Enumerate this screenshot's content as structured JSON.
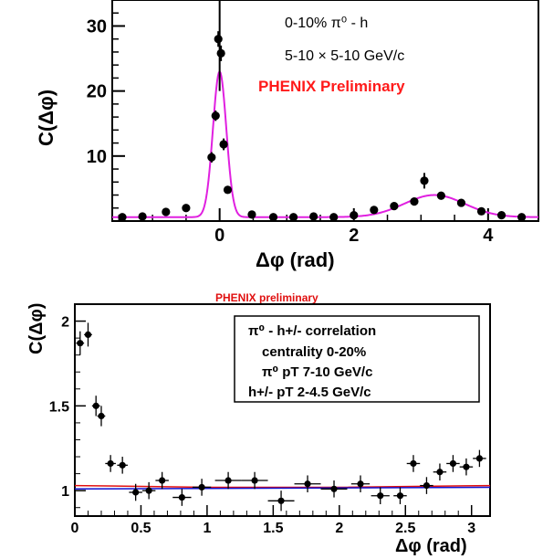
{
  "chart_data": [
    {
      "type": "scatter",
      "xlabel": "Δφ (rad)",
      "ylabel": "C(Δφ)",
      "xlim": [
        -1.6,
        4.75
      ],
      "ylim": [
        0,
        34
      ],
      "xticks": [
        0,
        2,
        4
      ],
      "yticks": [
        10,
        20,
        30
      ],
      "annotations": [
        "0-10%   π⁰ - h",
        "5-10 × 5-10 GeV/c"
      ],
      "preliminary_label": "PHENIX Preliminary",
      "colors": {
        "points": "#000000",
        "fit": "#e020e0",
        "preliminary": "#ff1a1a"
      },
      "series": [
        {
          "points": [
            {
              "x": -1.45,
              "y": 0.6
            },
            {
              "x": -1.15,
              "y": 0.7
            },
            {
              "x": -0.8,
              "y": 1.4
            },
            {
              "x": -0.5,
              "y": 2.0
            },
            {
              "x": -0.12,
              "y": 9.8
            },
            {
              "x": -0.06,
              "y": 16.2
            },
            {
              "x": -0.02,
              "y": 28.0
            },
            {
              "x": 0.02,
              "y": 25.8
            },
            {
              "x": 0.06,
              "y": 11.8
            },
            {
              "x": 0.12,
              "y": 4.8
            },
            {
              "x": 0.48,
              "y": 1.0
            },
            {
              "x": 0.8,
              "y": 0.6
            },
            {
              "x": 1.1,
              "y": 0.6
            },
            {
              "x": 1.4,
              "y": 0.7
            },
            {
              "x": 1.7,
              "y": 0.6
            },
            {
              "x": 2.0,
              "y": 0.9
            },
            {
              "x": 2.3,
              "y": 1.7
            },
            {
              "x": 2.6,
              "y": 2.3
            },
            {
              "x": 2.9,
              "y": 3.0
            },
            {
              "x": 3.05,
              "y": 6.2
            },
            {
              "x": 3.3,
              "y": 3.9
            },
            {
              "x": 3.6,
              "y": 2.8
            },
            {
              "x": 3.9,
              "y": 1.5
            },
            {
              "x": 4.2,
              "y": 0.9
            },
            {
              "x": 4.5,
              "y": 0.6
            }
          ],
          "yerr": [
            0.4,
            0.4,
            0.4,
            0.5,
            0.8,
            0.8,
            1.2,
            1.2,
            0.9,
            0.6,
            0.4,
            0.4,
            0.4,
            0.4,
            0.4,
            0.4,
            0.4,
            0.5,
            0.5,
            1.2,
            0.6,
            0.5,
            0.4,
            0.4,
            0.4
          ]
        }
      ]
    },
    {
      "type": "scatter",
      "title": "PHENIX preliminary",
      "xlabel": "Δφ (rad)",
      "ylabel": "C(Δφ)",
      "xlim": [
        0,
        3.14
      ],
      "ylim": [
        0.85,
        2.1
      ],
      "xticks": [
        0,
        0.5,
        1,
        1.5,
        2,
        2.5,
        3
      ],
      "xtick_labels": [
        "0",
        "0.5",
        "1",
        "1.5",
        "2",
        "2.5",
        "3"
      ],
      "yticks": [
        1,
        1.5,
        2
      ],
      "ytick_labels": [
        "1",
        "1.5",
        "2"
      ],
      "legend_lines": [
        "π⁰ - h+/- correlation",
        "centrality 0-20%",
        "π⁰ pT 7-10 GeV/c",
        "h+/- pT 2-4.5 GeV/c"
      ],
      "legend_placement": "top-right",
      "colors": {
        "points": "#000000",
        "line_red": "#e01010",
        "line_blue": "#1010d0",
        "title": "#e01010"
      },
      "series": [
        {
          "points": [
            {
              "x": 0.04,
              "y": 1.87
            },
            {
              "x": 0.1,
              "y": 1.92
            },
            {
              "x": 0.16,
              "y": 1.5
            },
            {
              "x": 0.2,
              "y": 1.44
            },
            {
              "x": 0.27,
              "y": 1.16
            },
            {
              "x": 0.36,
              "y": 1.15
            },
            {
              "x": 0.46,
              "y": 0.99
            },
            {
              "x": 0.56,
              "y": 1.0
            },
            {
              "x": 0.66,
              "y": 1.06
            },
            {
              "x": 0.81,
              "y": 0.96
            },
            {
              "x": 0.96,
              "y": 1.02
            },
            {
              "x": 1.16,
              "y": 1.06
            },
            {
              "x": 1.36,
              "y": 1.06
            },
            {
              "x": 1.56,
              "y": 0.94
            },
            {
              "x": 1.76,
              "y": 1.04
            },
            {
              "x": 1.96,
              "y": 1.01
            },
            {
              "x": 2.16,
              "y": 1.04
            },
            {
              "x": 2.31,
              "y": 0.97
            },
            {
              "x": 2.46,
              "y": 0.97
            },
            {
              "x": 2.56,
              "y": 1.16
            },
            {
              "x": 2.66,
              "y": 1.03
            },
            {
              "x": 2.76,
              "y": 1.11
            },
            {
              "x": 2.86,
              "y": 1.16
            },
            {
              "x": 2.96,
              "y": 1.14
            },
            {
              "x": 3.06,
              "y": 1.19
            }
          ],
          "yerr": [
            0.07,
            0.07,
            0.06,
            0.06,
            0.05,
            0.05,
            0.05,
            0.05,
            0.05,
            0.05,
            0.05,
            0.05,
            0.05,
            0.06,
            0.05,
            0.05,
            0.05,
            0.05,
            0.05,
            0.05,
            0.05,
            0.05,
            0.05,
            0.05,
            0.05
          ],
          "xerr": [
            0.03,
            0.03,
            0.03,
            0.03,
            0.04,
            0.04,
            0.05,
            0.05,
            0.05,
            0.07,
            0.07,
            0.1,
            0.1,
            0.1,
            0.1,
            0.1,
            0.07,
            0.07,
            0.05,
            0.05,
            0.05,
            0.05,
            0.05,
            0.05,
            0.05
          ]
        }
      ],
      "baseline_red": [
        {
          "x": 0,
          "y": 1.03
        },
        {
          "x": 1.0,
          "y": 1.02
        },
        {
          "x": 2.0,
          "y": 1.02
        },
        {
          "x": 3.14,
          "y": 1.03
        }
      ],
      "baseline_blue": [
        {
          "x": 0,
          "y": 1.01
        },
        {
          "x": 3.14,
          "y": 1.02
        }
      ]
    }
  ]
}
